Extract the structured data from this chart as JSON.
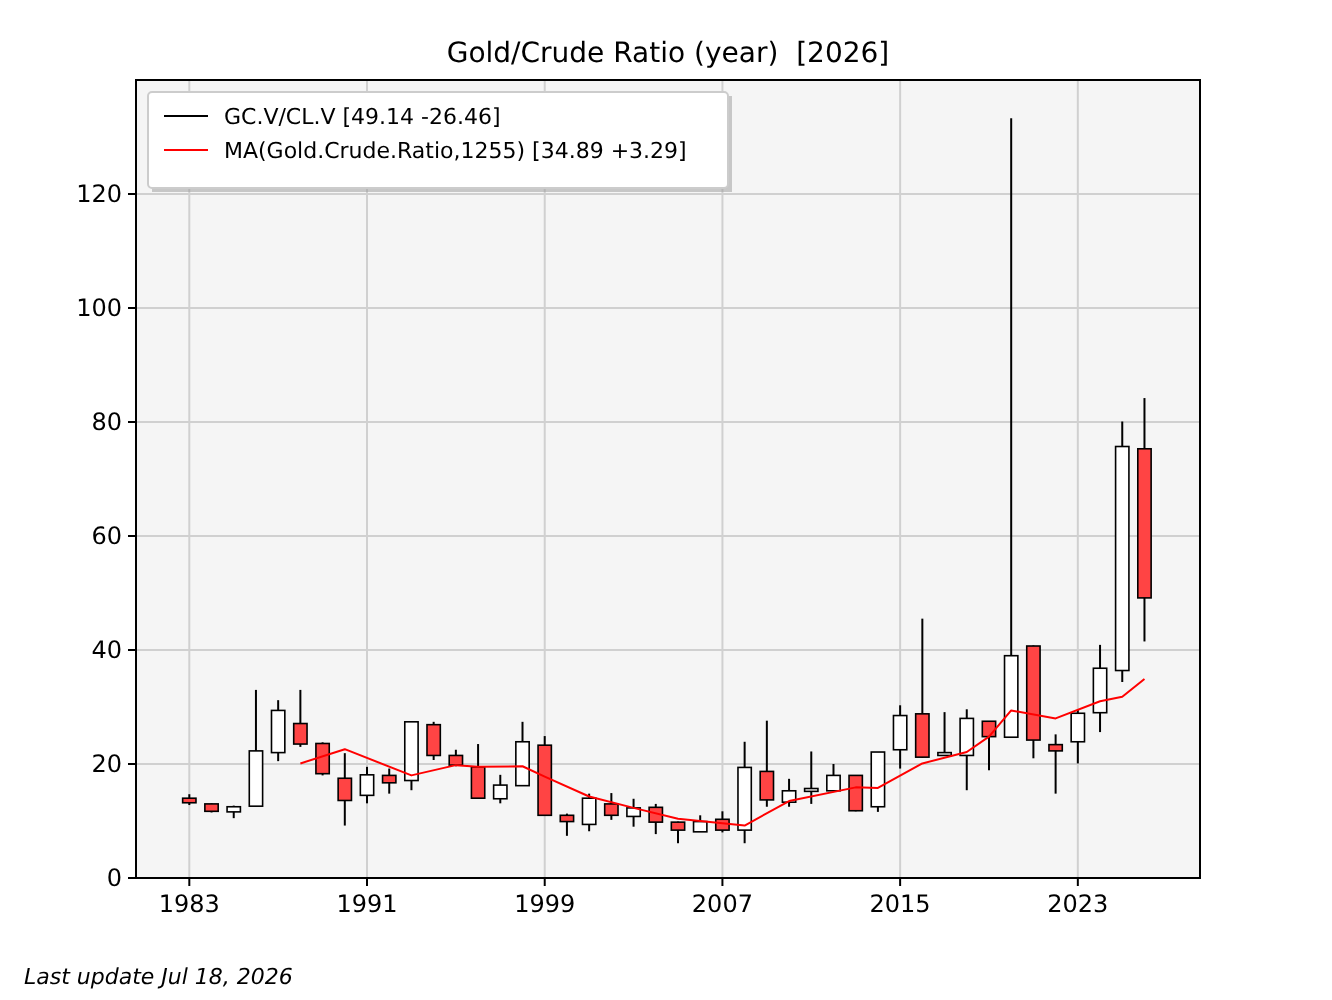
{
  "chart_data": {
    "type": "candlestick",
    "title": "Gold/Crude Ratio (year)  [2026]",
    "annotations": [
      "Last update Jul 18, 2026"
    ],
    "x": [
      1983,
      1984,
      1985,
      1986,
      1987,
      1988,
      1989,
      1990,
      1991,
      1992,
      1993,
      1994,
      1995,
      1996,
      1997,
      1998,
      1999,
      2000,
      2001,
      2002,
      2003,
      2004,
      2005,
      2006,
      2007,
      2008,
      2009,
      2010,
      2011,
      2012,
      2013,
      2014,
      2015,
      2016,
      2017,
      2018,
      2019,
      2020,
      2021,
      2022,
      2023,
      2024,
      2025,
      2026
    ],
    "series": [
      {
        "name": "GC.V/CL.V [49.14 -26.46]",
        "color": "#000000",
        "ohlc": [
          [
            14,
            14.7,
            12.8,
            13.2
          ],
          [
            13,
            13.1,
            11.5,
            11.7
          ],
          [
            11.6,
            12.7,
            10.5,
            12.5
          ],
          [
            12.6,
            33,
            12.6,
            22.3
          ],
          [
            22,
            31.2,
            20.5,
            29.4
          ],
          [
            27.1,
            33,
            23,
            23.5
          ],
          [
            23.6,
            23.8,
            18,
            18.3
          ],
          [
            17.5,
            21.9,
            9.2,
            13.6
          ],
          [
            14.5,
            19.5,
            13.1,
            18.1
          ],
          [
            18,
            19.2,
            14.8,
            16.7
          ],
          [
            17.1,
            27.4,
            15.4,
            27.4
          ],
          [
            26.9,
            27.4,
            20.7,
            21.5
          ],
          [
            21.5,
            22.5,
            19.6,
            19.8
          ],
          [
            19.5,
            23.5,
            14,
            14
          ],
          [
            13.9,
            18.1,
            13.1,
            16.3
          ],
          [
            16.2,
            27.4,
            16.2,
            23.9
          ],
          [
            23.3,
            24.9,
            11,
            11
          ],
          [
            11,
            11.3,
            7.4,
            9.9
          ],
          [
            9.4,
            14.8,
            8.2,
            14
          ],
          [
            13,
            14.9,
            10.2,
            11
          ],
          [
            10.8,
            13.9,
            9,
            12.3
          ],
          [
            12.4,
            13,
            7.7,
            9.8
          ],
          [
            9.8,
            9.9,
            6.1,
            8.4
          ],
          [
            8.1,
            11,
            8.1,
            9.9
          ],
          [
            10.3,
            11.7,
            8,
            8.4
          ],
          [
            8.4,
            23.9,
            6.1,
            19.4
          ],
          [
            18.7,
            27.6,
            12.5,
            13.7
          ],
          [
            13.3,
            17.4,
            12.5,
            15.3
          ],
          [
            15.2,
            22.2,
            13,
            15.7
          ],
          [
            15.3,
            20,
            15.3,
            18
          ],
          [
            18,
            18,
            11.7,
            11.8
          ],
          [
            12.5,
            22.1,
            11.6,
            22.1
          ],
          [
            22.5,
            30.3,
            19.2,
            28.5
          ],
          [
            28.8,
            45.5,
            21.1,
            21.2
          ],
          [
            21.5,
            29.1,
            21.5,
            22
          ],
          [
            21.5,
            29.6,
            15.4,
            28
          ],
          [
            27.5,
            27.5,
            18.9,
            24.8
          ],
          [
            24.7,
            133.3,
            24.7,
            39
          ],
          [
            40.7,
            40.8,
            21,
            24.2
          ],
          [
            23.4,
            25.2,
            14.8,
            22.3
          ],
          [
            23.9,
            29.5,
            20.1,
            28.9
          ],
          [
            29,
            40.9,
            25.6,
            36.8
          ],
          [
            36.4,
            80.1,
            34.4,
            75.7
          ],
          [
            75.3,
            84.2,
            41.5,
            49.14
          ]
        ]
      },
      {
        "type": "line",
        "name": "MA(Gold.Crude.Ratio,1255) [34.89 +3.29]",
        "color": "#ff0000",
        "x": [
          1988,
          1990,
          1993,
          1995,
          1996,
          1998,
          1999,
          2001,
          2003,
          2005,
          2008,
          2010,
          2013,
          2014,
          2016,
          2018,
          2019,
          2020,
          2022,
          2024,
          2025,
          2026
        ],
        "values": [
          20.1,
          22.6,
          18,
          19.8,
          19.5,
          19.6,
          17.8,
          14.3,
          12.3,
          10.4,
          9.2,
          13.5,
          15.9,
          15.8,
          20.1,
          22.1,
          24.8,
          29.4,
          28,
          31,
          31.8,
          34.9
        ]
      }
    ],
    "xlim": [
      1980.6,
      2028.5
    ],
    "xticks": [
      1983,
      1991,
      1999,
      2007,
      2015,
      2023
    ],
    "ylim": [
      0,
      140
    ],
    "yticks": [
      0,
      20,
      40,
      60,
      80,
      100,
      120
    ],
    "grid": true,
    "legend": "top left"
  }
}
